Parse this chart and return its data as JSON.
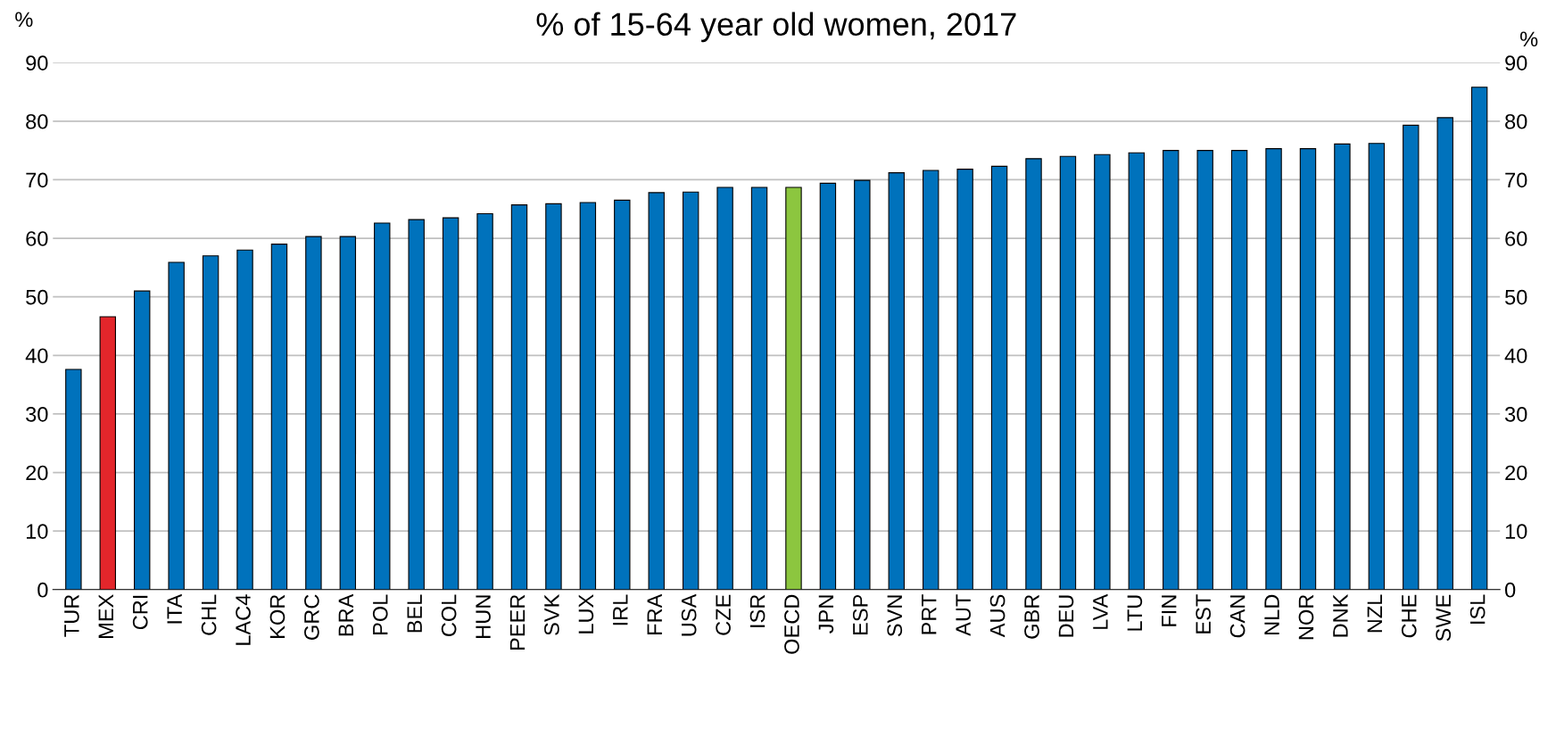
{
  "chart_data": {
    "type": "bar",
    "title": "% of 15-64 year old women, 2017",
    "ylabel": "%",
    "y2label": "%",
    "categories": [
      "TUR",
      "MEX",
      "CRI",
      "ITA",
      "CHL",
      "LAC4",
      "KOR",
      "GRC",
      "BRA",
      "POL",
      "BEL",
      "COL",
      "HUN",
      "PEER",
      "SVK",
      "LUX",
      "IRL",
      "FRA",
      "USA",
      "CZE",
      "ISR",
      "OECD",
      "JPN",
      "ESP",
      "SVN",
      "PRT",
      "AUT",
      "AUS",
      "GBR",
      "DEU",
      "LVA",
      "LTU",
      "FIN",
      "EST",
      "CAN",
      "NLD",
      "NOR",
      "DNK",
      "NZL",
      "CHE",
      "SWE",
      "ISL"
    ],
    "values": [
      37.6,
      46.6,
      51.0,
      55.9,
      57.0,
      58.0,
      59.0,
      60.3,
      60.3,
      62.6,
      63.2,
      63.5,
      64.2,
      65.7,
      65.9,
      66.1,
      66.5,
      67.8,
      67.9,
      68.7,
      68.7,
      68.7,
      69.4,
      69.9,
      71.2,
      71.6,
      71.8,
      72.3,
      73.6,
      74.0,
      74.3,
      74.6,
      75.0,
      75.0,
      75.0,
      75.3,
      75.3,
      76.1,
      76.2,
      79.3,
      80.6,
      85.8
    ],
    "colors": [
      "#0072bc",
      "#e3262b",
      "#0072bc",
      "#0072bc",
      "#0072bc",
      "#0072bc",
      "#0072bc",
      "#0072bc",
      "#0072bc",
      "#0072bc",
      "#0072bc",
      "#0072bc",
      "#0072bc",
      "#0072bc",
      "#0072bc",
      "#0072bc",
      "#0072bc",
      "#0072bc",
      "#0072bc",
      "#0072bc",
      "#0072bc",
      "#8cc63f",
      "#0072bc",
      "#0072bc",
      "#0072bc",
      "#0072bc",
      "#0072bc",
      "#0072bc",
      "#0072bc",
      "#0072bc",
      "#0072bc",
      "#0072bc",
      "#0072bc",
      "#0072bc",
      "#0072bc",
      "#0072bc",
      "#0072bc",
      "#0072bc",
      "#0072bc",
      "#0072bc",
      "#0072bc",
      "#0072bc"
    ],
    "ylim": [
      0,
      90
    ],
    "yticks": [
      0,
      10,
      20,
      30,
      40,
      50,
      60,
      70,
      80,
      90
    ],
    "y2lim": [
      0,
      90
    ],
    "y2ticks": [
      0,
      10,
      20,
      30,
      40,
      50,
      60,
      70,
      80,
      90
    ],
    "grid": "y",
    "legend": false
  }
}
